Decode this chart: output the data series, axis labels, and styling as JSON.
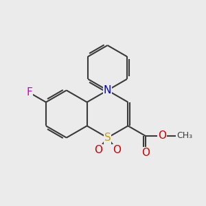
{
  "bg_color": "#ebebeb",
  "bond_color": "#3a3a3a",
  "bond_width": 1.5,
  "atom_colors": {
    "S": "#c8a000",
    "N": "#0000cc",
    "O": "#cc0000",
    "F": "#cc00cc",
    "C": "#3a3a3a"
  },
  "fs": 11,
  "fs_small": 9
}
